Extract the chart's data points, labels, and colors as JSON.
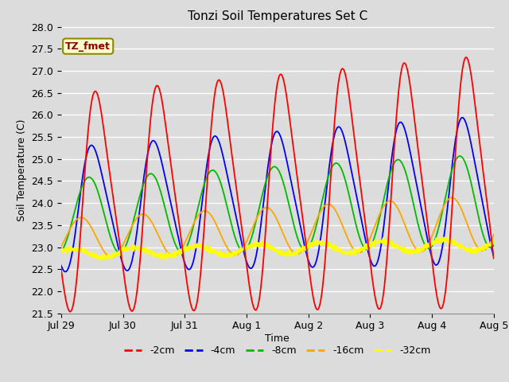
{
  "title": "Tonzi Soil Temperatures Set C",
  "xlabel": "Time",
  "ylabel": "Soil Temperature (C)",
  "ylim": [
    21.5,
    28.0
  ],
  "yticks": [
    21.5,
    22.0,
    22.5,
    23.0,
    23.5,
    24.0,
    24.5,
    25.0,
    25.5,
    26.0,
    26.5,
    27.0,
    27.5,
    28.0
  ],
  "annotation_text": "TZ_fmet",
  "annotation_color": "#8B0000",
  "annotation_bg": "#FFFFCC",
  "annotation_border": "#8B8B00",
  "colors": {
    "-2cm": "#FF0000",
    "-4cm": "#0000FF",
    "-8cm": "#00BB00",
    "-16cm": "#FFA500",
    "-32cm": "#FFFF00"
  },
  "legend_labels": [
    "-2cm",
    "-4cm",
    "-8cm",
    "-16cm",
    "-32cm"
  ],
  "background_color": "#DCDCDC",
  "plot_bg": "#DCDCDC",
  "grid_color": "#FFFFFF",
  "n_points": 2000,
  "x_start_days": 0,
  "x_end_days": 7.0,
  "x_tick_positions": [
    0,
    1,
    2,
    3,
    4,
    5,
    6,
    7
  ],
  "x_tick_labels": [
    "Jul 29",
    "Jul 30",
    "Jul 31",
    "Aug 1",
    "Aug 2",
    "Aug 3",
    "Aug 4",
    "Aug 5"
  ]
}
